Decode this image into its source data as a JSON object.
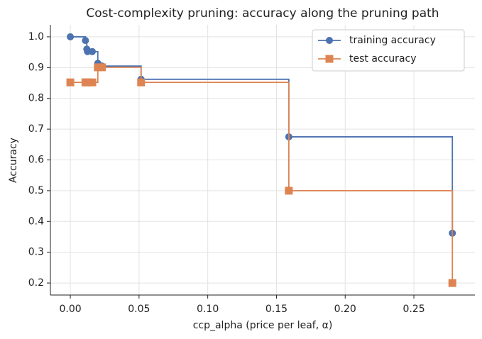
{
  "chart_data": {
    "type": "step-line",
    "title": "Cost-complexity pruning: accuracy along the pruning path",
    "xlabel": "ccp_alpha  (price per leaf, α)",
    "ylabel": "Accuracy",
    "x": [
      0,
      0.011,
      0.012,
      0.0125,
      0.016,
      0.02,
      0.023,
      0.0515,
      0.159,
      0.278
    ],
    "series": [
      {
        "name": "training accuracy",
        "color": "#4c72b0",
        "marker": "circle",
        "values": [
          1.0,
          0.988,
          0.96,
          0.952,
          0.952,
          0.914,
          0.905,
          0.862,
          0.675,
          0.362
        ]
      },
      {
        "name": "test accuracy",
        "color": "#dd8452",
        "marker": "square",
        "values": [
          0.852,
          0.852,
          0.852,
          0.852,
          0.852,
          0.901,
          0.901,
          0.852,
          0.5,
          0.2
        ]
      }
    ],
    "xlim": [
      -0.0145,
      0.2944
    ],
    "ylim": [
      0.161,
      1.039
    ],
    "xticks": [
      {
        "value": 0,
        "label": "0.00"
      },
      0.05,
      {
        "value": 0.1,
        "label": "0.10"
      },
      0.15,
      {
        "value": 0.2,
        "label": "0.20"
      },
      0.25
    ],
    "yticks": [
      0.2,
      0.3,
      0.4,
      0.5,
      0.6,
      0.7,
      0.8,
      0.9,
      {
        "value": 1.0,
        "label": "1.0"
      }
    ],
    "grid": true,
    "legend": "upper-right"
  }
}
